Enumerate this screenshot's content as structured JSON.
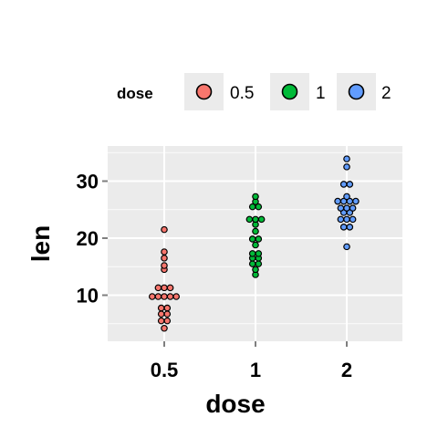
{
  "chart_data": {
    "type": "scatter",
    "subtype": "dotplot",
    "xlabel": "dose",
    "ylabel": "len",
    "categories": [
      "0.5",
      "1",
      "2"
    ],
    "yticks": [
      10,
      20,
      30
    ],
    "ylim": [
      2.5,
      36
    ],
    "grid": true,
    "legend": {
      "title": "dose",
      "placement": "top",
      "entries": [
        "0.5",
        "1",
        "2"
      ]
    },
    "colors": {
      "0.5": "#f8766d",
      "1": "#00ba38",
      "2": "#619cff",
      "panel": "#ebebeb",
      "grid": "#ffffff"
    },
    "series": [
      {
        "name": "0.5",
        "values": [
          4.2,
          5.2,
          5.8,
          6.4,
          7.0,
          7.3,
          8.2,
          9.4,
          9.7,
          9.7,
          10.0,
          10.0,
          11.2,
          11.2,
          11.5,
          14.5,
          15.2,
          16.5,
          17.6,
          21.5
        ]
      },
      {
        "name": "1",
        "values": [
          13.6,
          14.5,
          15.2,
          15.8,
          16.5,
          16.5,
          17.3,
          17.3,
          18.8,
          19.7,
          20.0,
          21.2,
          22.4,
          23.0,
          23.3,
          23.6,
          25.2,
          25.8,
          26.4,
          27.3
        ]
      },
      {
        "name": "2",
        "values": [
          18.5,
          21.5,
          22.4,
          23.0,
          23.3,
          23.6,
          24.5,
          24.5,
          24.8,
          25.5,
          25.5,
          26.4,
          26.4,
          26.4,
          26.7,
          27.3,
          29.4,
          29.5,
          32.5,
          33.9
        ]
      }
    ]
  }
}
